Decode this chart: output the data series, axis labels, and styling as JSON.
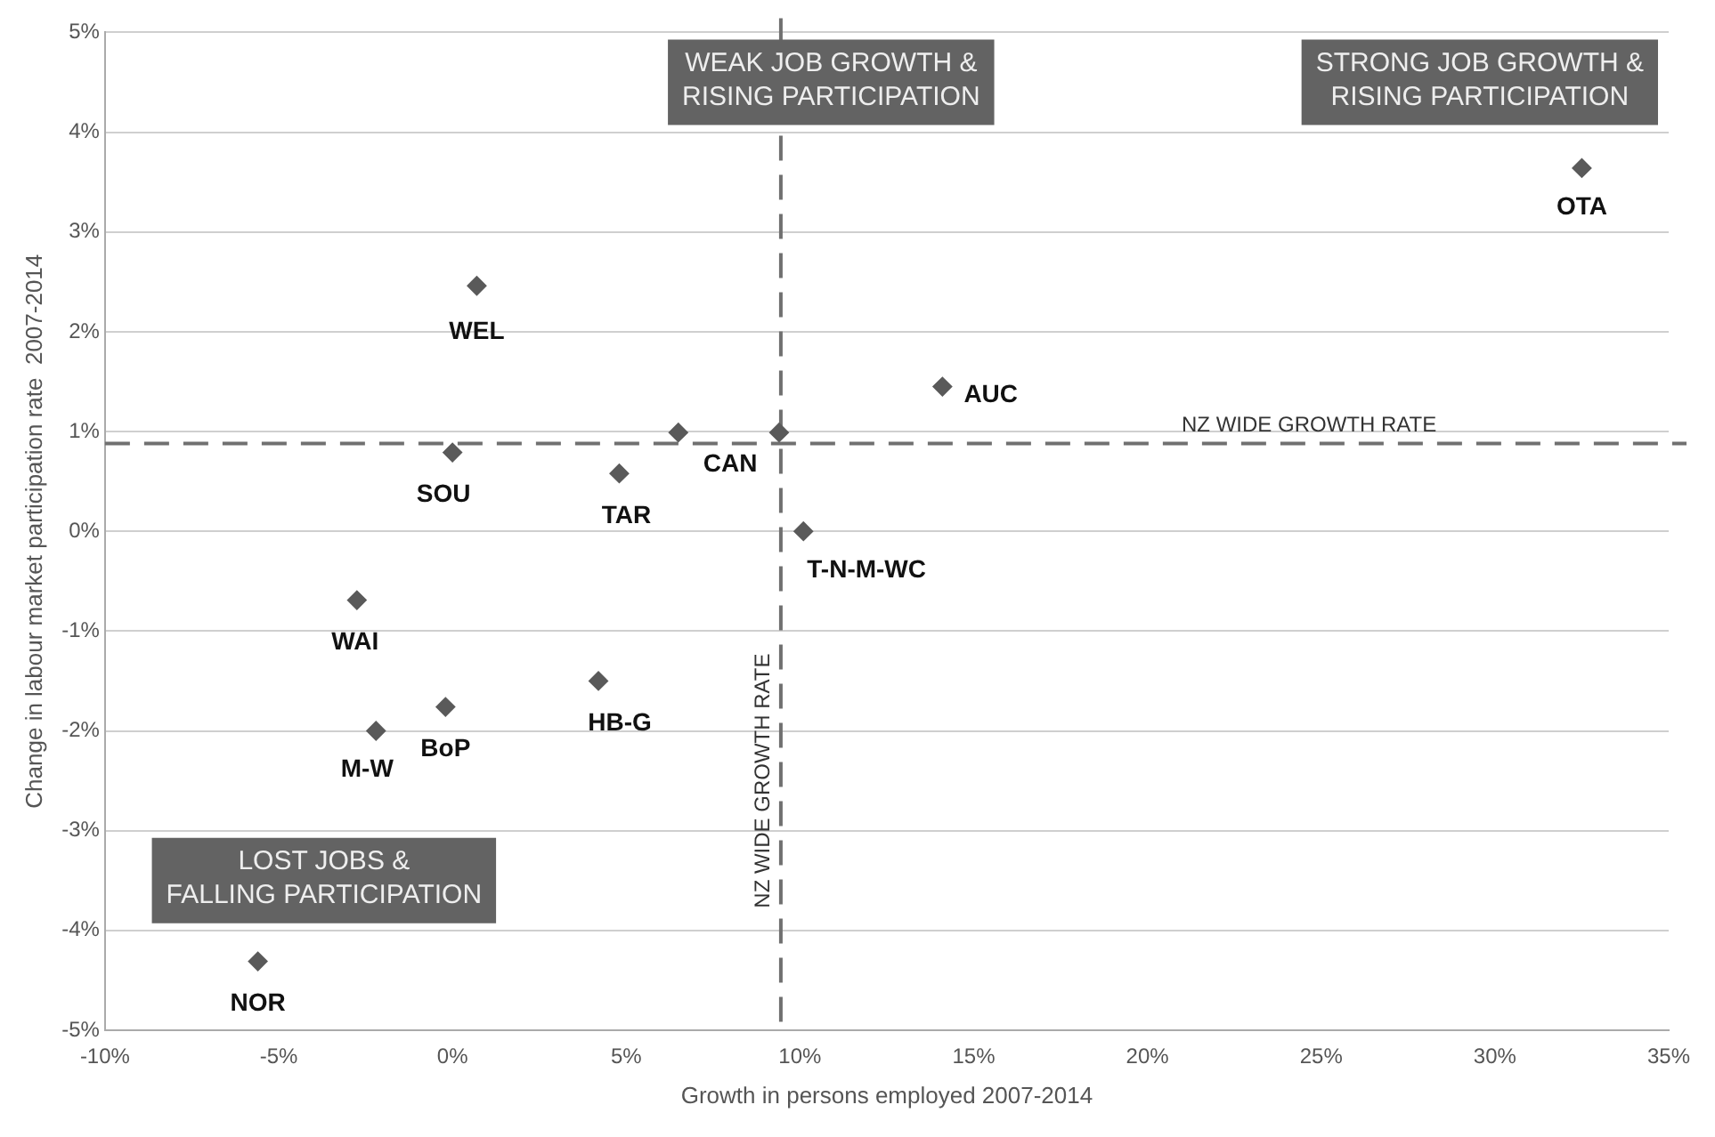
{
  "chart_data": {
    "type": "scatter",
    "xlabel": "Growth in persons employed 2007-2014",
    "ylabel": "Change in labour market participation rate  2007-2014",
    "x": [
      0.7,
      0.0,
      4.8,
      6.5,
      9.4,
      10.1,
      14.1,
      32.5,
      -2.75,
      -2.2,
      -0.2,
      4.2,
      -5.6
    ],
    "series": [
      {
        "color": "#5a5a5a",
        "values": [
          2.46,
          0.79,
          0.58,
          0.99,
          0.99,
          0.0,
          1.45,
          3.64,
          -0.69,
          -2.0,
          -1.76,
          -1.5,
          -4.31
        ]
      }
    ],
    "marker": "diamond",
    "grid": "y",
    "legend": false,
    "xlim": [
      -10,
      35
    ],
    "ylim": [
      -5,
      5
    ],
    "xticks": [
      {
        "value": -10,
        "label": "-10%"
      },
      {
        "value": -5,
        "label": "-5%"
      },
      {
        "value": 0,
        "label": "0%"
      },
      {
        "value": 5,
        "label": "5%"
      },
      {
        "value": 10,
        "label": "10%"
      },
      {
        "value": 15,
        "label": "15%"
      },
      {
        "value": 20,
        "label": "20%"
      },
      {
        "value": 25,
        "label": "25%"
      },
      {
        "value": 30,
        "label": "30%"
      },
      {
        "value": 35,
        "label": "35%"
      }
    ],
    "yticks": [
      {
        "value": -5,
        "label": "-5%"
      },
      {
        "value": -4,
        "label": "-4%"
      },
      {
        "value": -3,
        "label": "-3%"
      },
      {
        "value": -2,
        "label": "-2%"
      },
      {
        "value": -1,
        "label": "-1%"
      },
      {
        "value": 0,
        "label": "0%"
      },
      {
        "value": 1,
        "label": "1%"
      },
      {
        "value": 2,
        "label": "2%"
      },
      {
        "value": 3,
        "label": "3%"
      },
      {
        "value": 4,
        "label": "4%"
      },
      {
        "value": 5,
        "label": "5%"
      }
    ],
    "ref_lines": [
      {
        "axis": "x",
        "value": 9.45,
        "label": "NZ WIDE GROWTH RATE",
        "line_style": "dashed",
        "color": "#707070"
      },
      {
        "axis": "y",
        "value": 0.88,
        "label": "NZ WIDE GROWTH RATE",
        "line_style": "dashed",
        "color": "#707070"
      }
    ],
    "annotations": [
      "WEAK JOB GROWTH &\nRISING PARTICIPATION",
      "STRONG JOB GROWTH &\nRISING PARTICIPATION",
      "LOST JOBS &\nFALLING PARTICIPATION",
      {
        "text": "WEL",
        "x": 0.7,
        "y": 2.46
      },
      {
        "text": "SOU",
        "x": 0.0,
        "y": 0.79
      },
      {
        "text": "TAR",
        "x": 4.8,
        "y": 0.58
      },
      {
        "text": "CAN",
        "x": 6.5,
        "y": 0.99
      },
      {
        "text": "T-N-M-WC",
        "x": 10.1,
        "y": 0.0
      },
      {
        "text": "AUC",
        "x": 14.1,
        "y": 1.45
      },
      {
        "text": "OTA",
        "x": 32.5,
        "y": 3.64
      },
      {
        "text": "WAI",
        "x": -2.75,
        "y": -0.69
      },
      {
        "text": "M-W",
        "x": -2.2,
        "y": -2.0
      },
      {
        "text": "BoP",
        "x": -0.2,
        "y": -1.76
      },
      {
        "text": "HB-G",
        "x": 4.2,
        "y": -1.5
      },
      {
        "text": "NOR",
        "x": -5.6,
        "y": -4.31
      }
    ]
  }
}
